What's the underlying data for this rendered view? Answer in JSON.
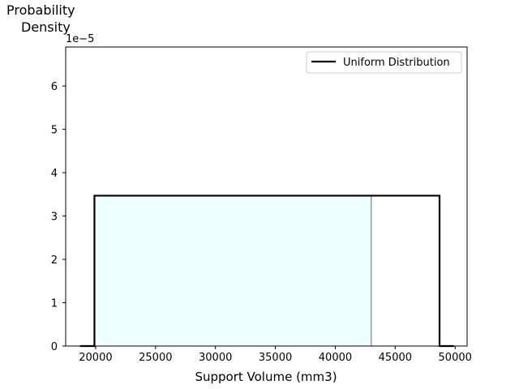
{
  "chart_data": {
    "type": "line",
    "ylabel_lines": [
      "Probability",
      "Density"
    ],
    "xlabel": "Support Volume (mm3)",
    "y_offset_label": "1e−5",
    "xlim": [
      17500,
      51000
    ],
    "ylim": [
      0,
      6.9
    ],
    "y_scale_exponent": -5,
    "x_ticks": [
      20000,
      25000,
      30000,
      35000,
      40000,
      45000,
      50000
    ],
    "x_tick_labels": [
      "20000",
      "25000",
      "30000",
      "35000",
      "40000",
      "45000",
      "50000"
    ],
    "y_ticks": [
      0,
      1,
      2,
      3,
      4,
      5,
      6
    ],
    "y_tick_labels": [
      "0",
      "1",
      "2",
      "3",
      "4",
      "5",
      "6"
    ],
    "series": [
      {
        "name": "Uniform Distribution",
        "color": "#000000",
        "x": [
          18700,
          19900,
          19900,
          48700,
          48700,
          49900
        ],
        "y": [
          0,
          0,
          3.47,
          3.47,
          0,
          0
        ]
      }
    ],
    "shaded_region": {
      "x_start": 19900,
      "x_end": 43000,
      "y_height": 3.47,
      "fill_color": "#eeffff",
      "edge_color": "#808080"
    },
    "legend_position": "upper right",
    "grid": false
  }
}
